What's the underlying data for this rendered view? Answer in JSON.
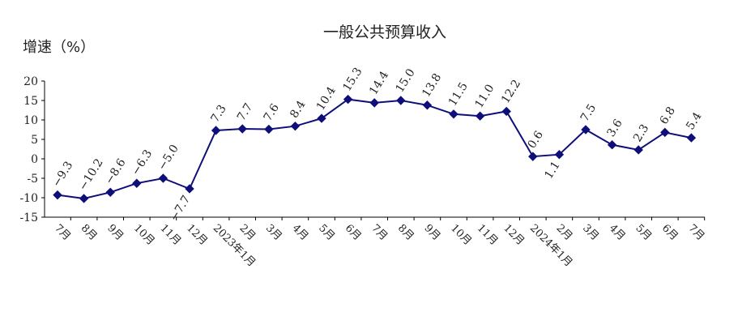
{
  "chart_data": {
    "type": "line",
    "title": "一般公共预算收入",
    "ylabel": "增速（%）",
    "xlabel": "",
    "ylim": [
      -15,
      20
    ],
    "yticks": [
      20,
      15,
      10,
      5,
      0,
      -5,
      -10,
      -15
    ],
    "grid": false,
    "legend": "none",
    "line_color": "#0f0f7a",
    "categories": [
      "7月",
      "8月",
      "9月",
      "10月",
      "11月",
      "12月",
      "2023年1月",
      "2月",
      "3月",
      "4月",
      "5月",
      "6月",
      "7月",
      "8月",
      "9月",
      "10月",
      "11月",
      "12月",
      "2024年1月",
      "2月",
      "3月",
      "4月",
      "5月",
      "6月",
      "7月"
    ],
    "series": [
      {
        "values": [
          -9.3,
          -10.2,
          -8.6,
          -6.3,
          -5.0,
          -7.7,
          7.3,
          7.7,
          7.6,
          8.4,
          10.4,
          15.3,
          14.4,
          15.0,
          13.8,
          11.5,
          11.0,
          12.2,
          0.6,
          1.1,
          7.5,
          3.6,
          2.3,
          6.8,
          5.4
        ],
        "labels": [
          "−9.3",
          "−10.2",
          "−8.6",
          "−6.3",
          "−5.0",
          "−7.7",
          "7.3",
          "7.7",
          "7.6",
          "8.4",
          "10.4",
          "15.3",
          "14.4",
          "15.0",
          "13.8",
          "11.5",
          "11.0",
          "12.2",
          "0.6",
          "1.1",
          "7.5",
          "3.6",
          "2.3",
          "6.8",
          "5.4"
        ]
      }
    ]
  }
}
